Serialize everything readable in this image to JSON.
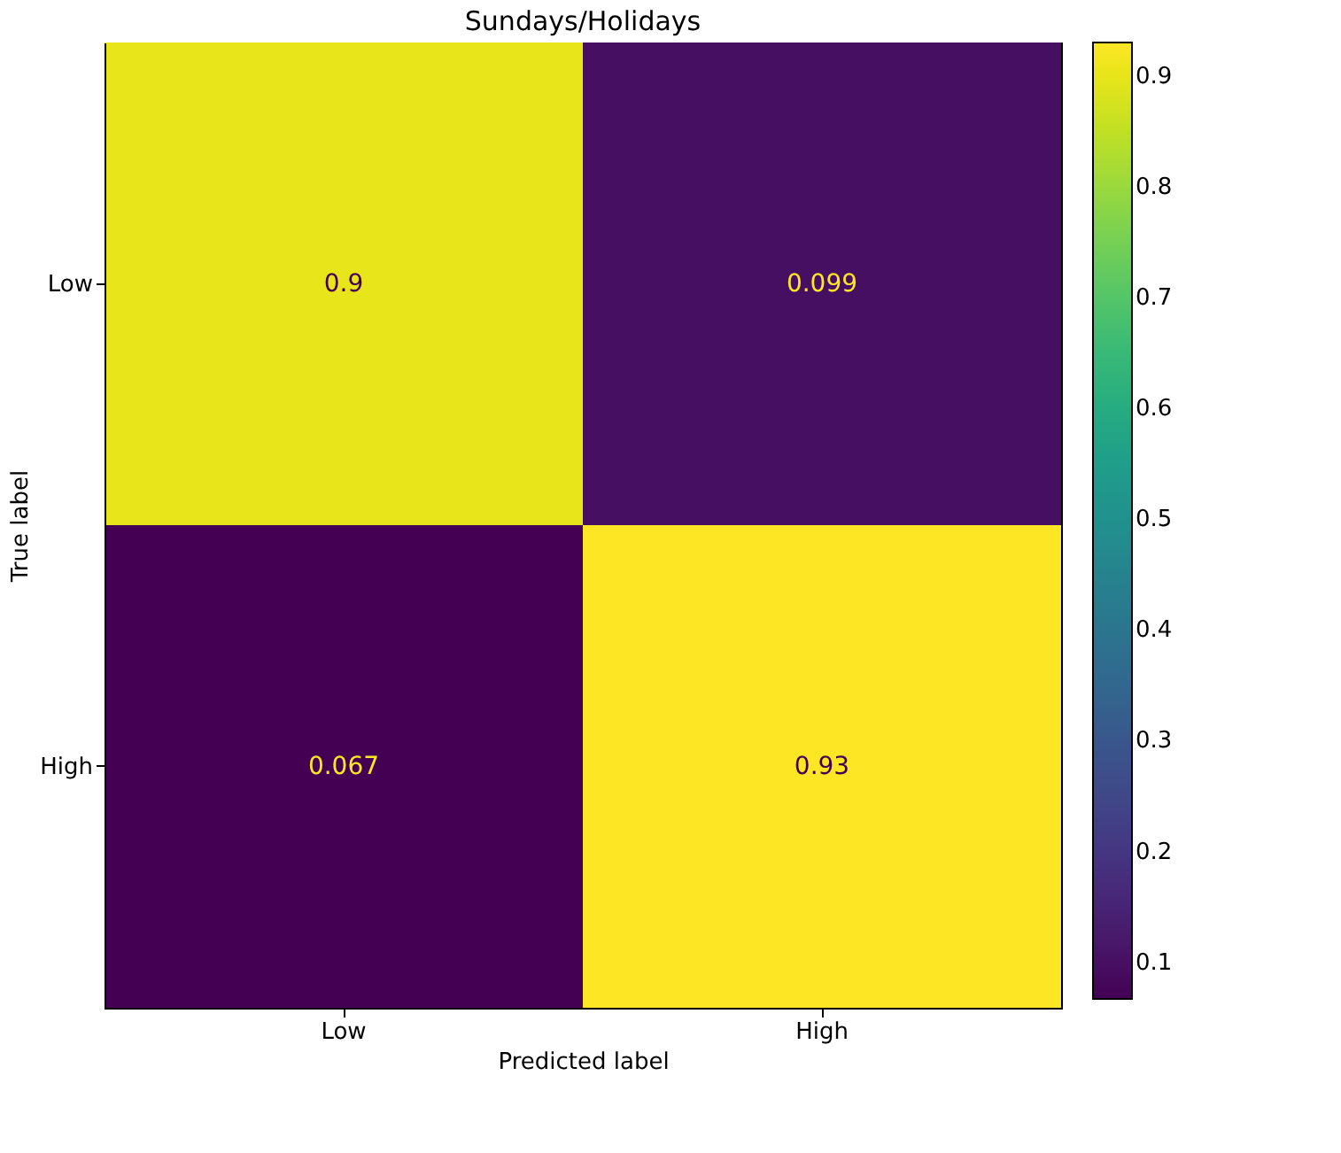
{
  "chart_data": {
    "type": "heatmap",
    "title": "Sundays/Holidays",
    "xlabel": "Predicted label",
    "ylabel": "True label",
    "categories": [
      "Low",
      "High"
    ],
    "y_categories": [
      "Low",
      "High"
    ],
    "cells": [
      [
        0.9,
        0.099
      ],
      [
        0.067,
        0.93
      ]
    ],
    "data_labels": true,
    "clim": [
      0.067,
      0.93
    ],
    "cticks": [
      0.1,
      0.2,
      0.3,
      0.4,
      0.5,
      0.6,
      0.7,
      0.8,
      0.9
    ],
    "grid": false
  }
}
